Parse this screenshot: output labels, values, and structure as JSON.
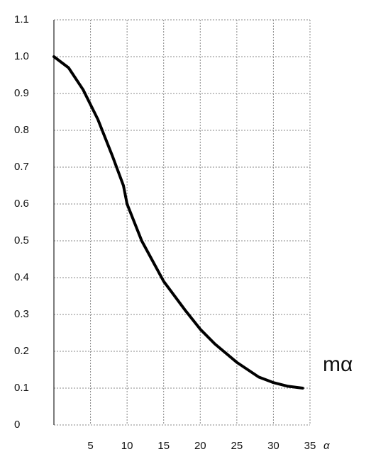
{
  "chart_data": {
    "type": "line",
    "x_label": "α",
    "y_label": "mα",
    "xlim": [
      0,
      35
    ],
    "ylim": [
      0,
      1.1
    ],
    "xticks": [
      5,
      10,
      15,
      20,
      25,
      30,
      35
    ],
    "yticks": [
      0,
      0.1,
      0.2,
      0.3,
      0.4,
      0.5,
      0.6,
      0.7,
      0.8,
      0.9,
      {
        "value": 1,
        "label": "1.0"
      },
      1.1
    ],
    "grid": true,
    "series": [
      {
        "color": "#000000",
        "x": [
          0,
          2,
          4,
          6,
          8,
          9.5,
          10,
          12,
          15,
          18,
          20,
          22,
          25,
          28,
          30,
          32,
          34
        ],
        "values": [
          1.0,
          0.97,
          0.91,
          0.83,
          0.73,
          0.65,
          0.6,
          0.5,
          0.39,
          0.31,
          0.26,
          0.22,
          0.17,
          0.13,
          0.115,
          0.105,
          0.1
        ]
      }
    ]
  }
}
